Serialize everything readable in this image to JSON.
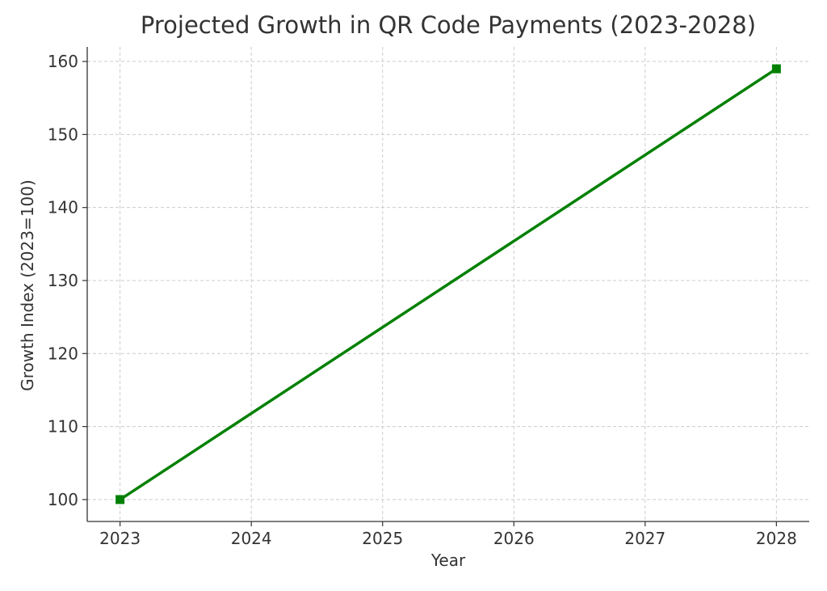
{
  "chart_data": {
    "type": "line",
    "title": "Projected Growth in QR Code Payments (2023-2028)",
    "xlabel": "Year",
    "ylabel": "Growth Index (2023=100)",
    "x": [
      2023,
      2028
    ],
    "series": [
      {
        "values": [
          100,
          159
        ],
        "color": "#008000",
        "marker": "square"
      }
    ],
    "xticks": [
      "2023",
      "2024",
      "2025",
      "2026",
      "2027",
      "2028"
    ],
    "yticks": [
      "100",
      "110",
      "120",
      "130",
      "140",
      "150",
      "160"
    ],
    "xlim": [
      2022.75,
      2028.25
    ],
    "ylim": [
      97,
      162
    ],
    "grid": true,
    "grid_style": "dashed"
  }
}
